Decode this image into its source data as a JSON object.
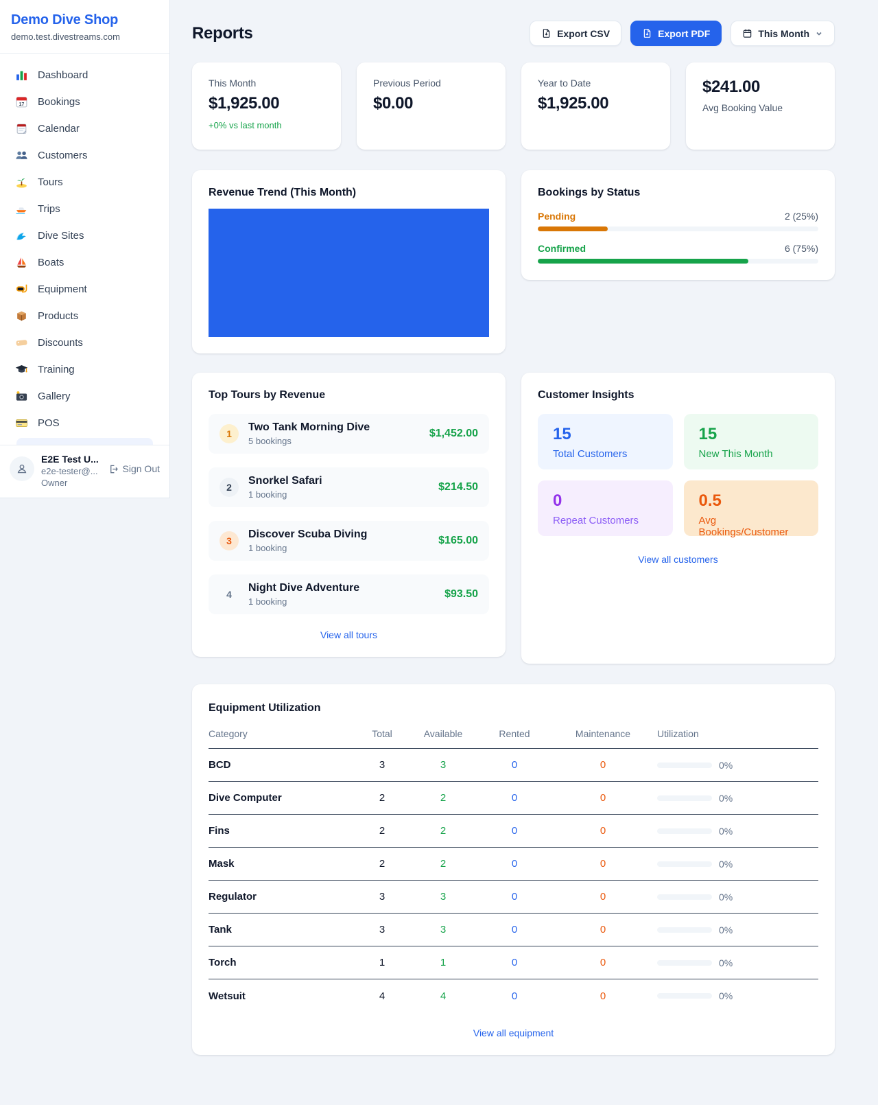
{
  "app": {
    "name": "Demo Dive Shop",
    "domain": "demo.test.divestreams.com"
  },
  "colors": {
    "accent": "#2563eb",
    "green": "#16a34a",
    "orange": "#d97706",
    "deep_orange": "#ea580c",
    "purple": "#9333ea",
    "chart_fill": "#2563eb"
  },
  "sidebar": {
    "items": [
      {
        "label": "Dashboard",
        "icon": "bar-chart-icon"
      },
      {
        "label": "Bookings",
        "icon": "calendar-17-icon"
      },
      {
        "label": "Calendar",
        "icon": "notepad-calendar-icon"
      },
      {
        "label": "Customers",
        "icon": "people-icon"
      },
      {
        "label": "Tours",
        "icon": "island-icon"
      },
      {
        "label": "Trips",
        "icon": "speedboat-icon"
      },
      {
        "label": "Dive Sites",
        "icon": "wave-icon"
      },
      {
        "label": "Boats",
        "icon": "sailboat-icon"
      },
      {
        "label": "Equipment",
        "icon": "dive-mask-icon"
      },
      {
        "label": "Products",
        "icon": "package-icon"
      },
      {
        "label": "Discounts",
        "icon": "tag-icon"
      },
      {
        "label": "Training",
        "icon": "graduation-cap-icon"
      },
      {
        "label": "Gallery",
        "icon": "camera-icon"
      },
      {
        "label": "POS",
        "icon": "credit-card-icon"
      }
    ],
    "user": {
      "name": "E2E Test U...",
      "email": "e2e-tester@...",
      "role": "Owner",
      "sign_out": "Sign Out"
    }
  },
  "header": {
    "title": "Reports",
    "export_csv": "Export CSV",
    "export_pdf": "Export PDF",
    "period": "This Month"
  },
  "stats": [
    {
      "label": "This Month",
      "value": "$1,925.00",
      "delta": "+0% vs last month"
    },
    {
      "label": "Previous Period",
      "value": "$0.00"
    },
    {
      "label": "Year to Date",
      "value": "$1,925.00"
    },
    {
      "label": "Avg Booking Value",
      "value": "$241.00"
    }
  ],
  "revenue_trend": {
    "title": "Revenue Trend (This Month)",
    "fill_color": "#2563eb"
  },
  "bookings_by_status": {
    "title": "Bookings by Status",
    "rows": [
      {
        "label": "Pending",
        "count_text": "2 (25%)",
        "percent": 25
      },
      {
        "label": "Confirmed",
        "count_text": "6 (75%)",
        "percent": 75
      }
    ]
  },
  "top_tours": {
    "title": "Top Tours by Revenue",
    "items": [
      {
        "rank": "1",
        "name": "Two Tank Morning Dive",
        "bookings": "5 bookings",
        "revenue": "$1,452.00"
      },
      {
        "rank": "2",
        "name": "Snorkel Safari",
        "bookings": "1 booking",
        "revenue": "$214.50"
      },
      {
        "rank": "3",
        "name": "Discover Scuba Diving",
        "bookings": "1 booking",
        "revenue": "$165.00"
      },
      {
        "rank": "4",
        "name": "Night Dive Adventure",
        "bookings": "1 booking",
        "revenue": "$93.50"
      }
    ],
    "view_all": "View all tours"
  },
  "customer_insights": {
    "title": "Customer Insights",
    "tiles": [
      {
        "value": "15",
        "label": "Total Customers",
        "color": "#2563eb"
      },
      {
        "value": "15",
        "label": "New This Month",
        "color": "#16a34a"
      },
      {
        "value": "0",
        "label": "Repeat Customers",
        "color": "#9333ea"
      },
      {
        "value": "0.5",
        "label": "Avg Bookings/Customer",
        "color": "#ea580c"
      }
    ],
    "view_all": "View all customers"
  },
  "equipment": {
    "title": "Equipment Utilization",
    "columns": [
      "Category",
      "Total",
      "Available",
      "Rented",
      "Maintenance",
      "Utilization"
    ],
    "rows": [
      {
        "category": "BCD",
        "total": "3",
        "available": "3",
        "rented": "0",
        "maintenance": "0",
        "utilization": "0%"
      },
      {
        "category": "Dive Computer",
        "total": "2",
        "available": "2",
        "rented": "0",
        "maintenance": "0",
        "utilization": "0%"
      },
      {
        "category": "Fins",
        "total": "2",
        "available": "2",
        "rented": "0",
        "maintenance": "0",
        "utilization": "0%"
      },
      {
        "category": "Mask",
        "total": "2",
        "available": "2",
        "rented": "0",
        "maintenance": "0",
        "utilization": "0%"
      },
      {
        "category": "Regulator",
        "total": "3",
        "available": "3",
        "rented": "0",
        "maintenance": "0",
        "utilization": "0%"
      },
      {
        "category": "Tank",
        "total": "3",
        "available": "3",
        "rented": "0",
        "maintenance": "0",
        "utilization": "0%"
      },
      {
        "category": "Torch",
        "total": "1",
        "available": "1",
        "rented": "0",
        "maintenance": "0",
        "utilization": "0%"
      },
      {
        "category": "Wetsuit",
        "total": "4",
        "available": "4",
        "rented": "0",
        "maintenance": "0",
        "utilization": "0%"
      }
    ],
    "view_all": "View all equipment"
  }
}
